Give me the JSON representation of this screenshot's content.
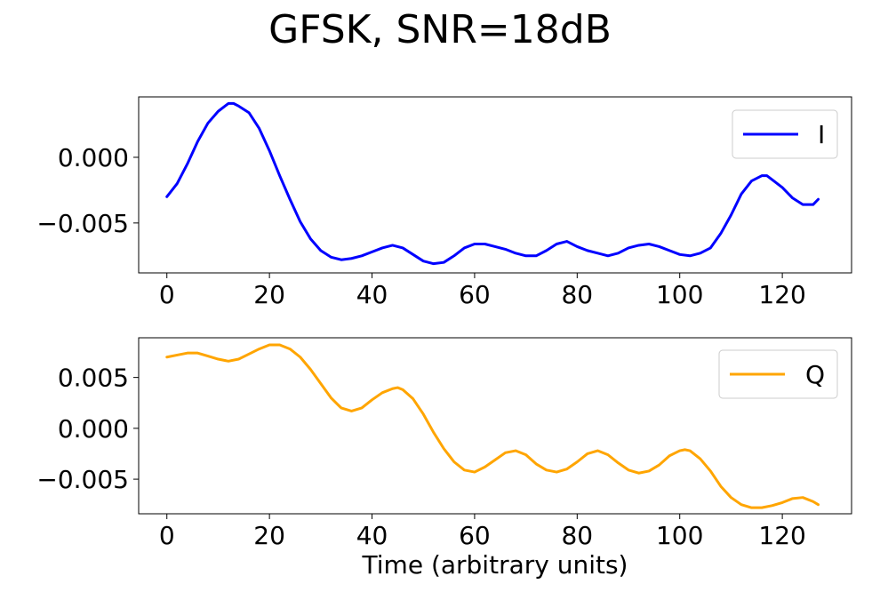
{
  "figure": {
    "title": "GFSK, SNR=18dB"
  },
  "chart_data": [
    {
      "type": "line",
      "title": "",
      "xlabel": "",
      "ylabel": "",
      "xlim": [
        -5.5,
        133.5
      ],
      "ylim": [
        -0.0088,
        0.0046
      ],
      "xticks": [
        0,
        20,
        40,
        60,
        80,
        100,
        120
      ],
      "xtick_labels": [
        "0",
        "20",
        "40",
        "60",
        "80",
        "100",
        "120"
      ],
      "yticks": [
        0.0,
        -0.005
      ],
      "ytick_labels": [
        "0.000",
        "−0.005"
      ],
      "grid": false,
      "legend": "top-right",
      "series": [
        {
          "name": "I",
          "color": "#0000ff",
          "x": [
            0,
            2,
            4,
            6,
            8,
            10,
            12,
            13,
            14,
            16,
            18,
            20,
            22,
            24,
            26,
            28,
            30,
            32,
            34,
            36,
            38,
            40,
            42,
            44,
            46,
            48,
            50,
            52,
            54,
            56,
            58,
            60,
            62,
            64,
            66,
            68,
            70,
            72,
            74,
            76,
            78,
            80,
            82,
            84,
            86,
            88,
            90,
            92,
            94,
            96,
            98,
            100,
            102,
            104,
            106,
            108,
            110,
            112,
            114,
            116,
            117,
            118,
            120,
            122,
            124,
            126,
            127
          ],
          "y": [
            -0.003,
            -0.002,
            -0.0005,
            0.0012,
            0.0026,
            0.0035,
            0.0041,
            0.0041,
            0.0039,
            0.0034,
            0.0022,
            0.0005,
            -0.0014,
            -0.0032,
            -0.0049,
            -0.0062,
            -0.0071,
            -0.0076,
            -0.0078,
            -0.0077,
            -0.0075,
            -0.0072,
            -0.0069,
            -0.0067,
            -0.0069,
            -0.0074,
            -0.0079,
            -0.0081,
            -0.008,
            -0.0075,
            -0.0069,
            -0.0066,
            -0.0066,
            -0.0068,
            -0.007,
            -0.0073,
            -0.0075,
            -0.0075,
            -0.0071,
            -0.0066,
            -0.0064,
            -0.0068,
            -0.0071,
            -0.0073,
            -0.0075,
            -0.0073,
            -0.0069,
            -0.0067,
            -0.0066,
            -0.0068,
            -0.0071,
            -0.0074,
            -0.0075,
            -0.0073,
            -0.0069,
            -0.0058,
            -0.0044,
            -0.0028,
            -0.0018,
            -0.0014,
            -0.0014,
            -0.0017,
            -0.0023,
            -0.0031,
            -0.0036,
            -0.0036,
            -0.0032
          ]
        }
      ]
    },
    {
      "type": "line",
      "title": "",
      "xlabel": "Time (arbitrary units)",
      "ylabel": "",
      "xlim": [
        -5.5,
        133.5
      ],
      "ylim": [
        -0.0084,
        0.0089
      ],
      "xticks": [
        0,
        20,
        40,
        60,
        80,
        100,
        120
      ],
      "xtick_labels": [
        "0",
        "20",
        "40",
        "60",
        "80",
        "100",
        "120"
      ],
      "yticks": [
        0.005,
        0.0,
        -0.005
      ],
      "ytick_labels": [
        "0.005",
        "0.000",
        "−0.005"
      ],
      "grid": false,
      "legend": "top-right",
      "series": [
        {
          "name": "Q",
          "color": "#ffa500",
          "x": [
            0,
            2,
            4,
            6,
            8,
            10,
            12,
            14,
            16,
            18,
            20,
            22,
            24,
            26,
            28,
            30,
            32,
            34,
            36,
            38,
            40,
            42,
            44,
            45,
            46,
            48,
            50,
            52,
            54,
            56,
            58,
            60,
            62,
            64,
            66,
            68,
            70,
            72,
            74,
            76,
            78,
            80,
            82,
            84,
            86,
            88,
            90,
            92,
            94,
            96,
            98,
            100,
            101,
            102,
            104,
            106,
            108,
            110,
            112,
            114,
            116,
            118,
            120,
            122,
            124,
            126,
            127
          ],
          "y": [
            0.007,
            0.0072,
            0.0074,
            0.0074,
            0.0071,
            0.0068,
            0.0066,
            0.0068,
            0.0073,
            0.0078,
            0.0082,
            0.0082,
            0.0078,
            0.007,
            0.0058,
            0.0044,
            0.003,
            0.002,
            0.0017,
            0.002,
            0.0028,
            0.0035,
            0.0039,
            0.004,
            0.0038,
            0.0029,
            0.0014,
            -0.0004,
            -0.002,
            -0.0033,
            -0.0041,
            -0.0043,
            -0.0038,
            -0.0031,
            -0.0024,
            -0.0022,
            -0.0026,
            -0.0035,
            -0.0041,
            -0.0043,
            -0.004,
            -0.0033,
            -0.0025,
            -0.0022,
            -0.0026,
            -0.0034,
            -0.0041,
            -0.0044,
            -0.0042,
            -0.0036,
            -0.0027,
            -0.0022,
            -0.0021,
            -0.0022,
            -0.003,
            -0.0042,
            -0.0057,
            -0.0068,
            -0.0075,
            -0.0078,
            -0.0078,
            -0.0076,
            -0.0073,
            -0.0069,
            -0.0068,
            -0.0072,
            -0.0075
          ]
        }
      ]
    }
  ]
}
